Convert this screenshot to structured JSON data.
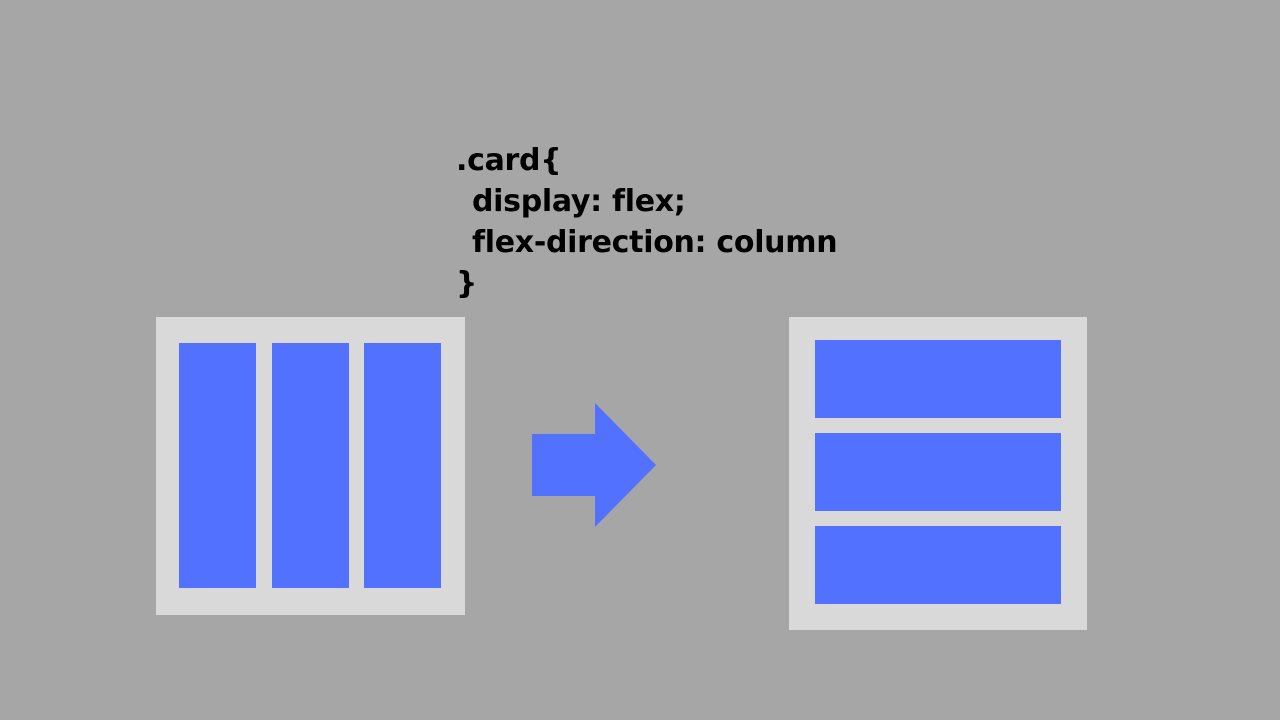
{
  "code": {
    "line1": ".card{",
    "line2": "display: flex;",
    "line3": "flex-direction: column",
    "line4": "}"
  },
  "colors": {
    "background": "#a6a6a6",
    "panel": "#d9d9d9",
    "block": "#5271ff",
    "code_text": "#000000"
  },
  "icons": {
    "transition": "right-arrow-icon"
  }
}
